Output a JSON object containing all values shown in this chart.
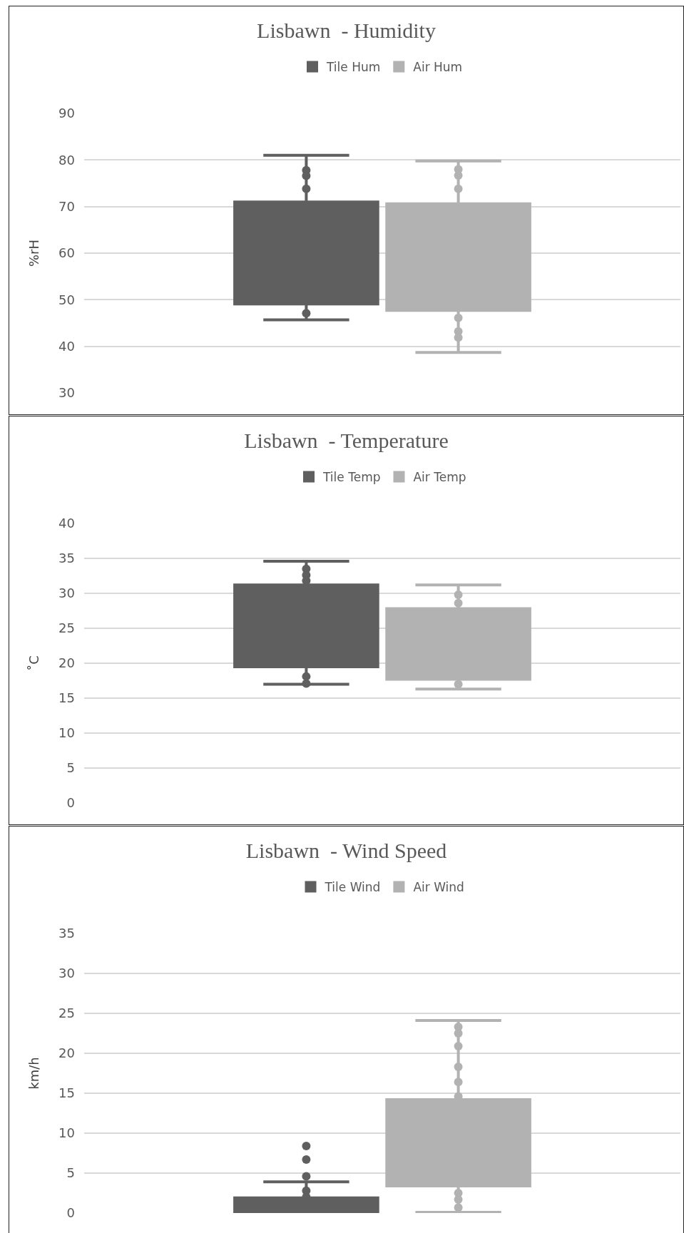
{
  "chart_data": [
    {
      "type": "box",
      "title": "Lisbawn  - Humidity",
      "ylabel": "%rH",
      "categories": [
        null
      ],
      "ylim": [
        30,
        90
      ],
      "yticks": [
        30,
        40,
        50,
        60,
        70,
        80,
        90
      ],
      "grid": "y",
      "legend": "top",
      "marker": "circle",
      "series": [
        {
          "name": "Tile Hum",
          "color": "#5f5f5f",
          "boxes": [
            {
              "low": 45.7,
              "q1": 49.1,
              "median": 60,
              "q3": 71,
              "high": 81,
              "outliers": [
                77.8,
                76.6,
                73.8,
                47.1
              ]
            }
          ]
        },
        {
          "name": "Air Hum",
          "color": "#b2b2b2",
          "boxes": [
            {
              "low": 38.7,
              "q1": 47.7,
              "median": 59,
              "q3": 70.6,
              "high": 79.8,
              "outliers": [
                78,
                76.7,
                73.8,
                46.1,
                43.2,
                41.9
              ]
            }
          ]
        }
      ]
    },
    {
      "type": "box",
      "title": "Lisbawn  - Temperature",
      "ylabel": "˚C",
      "categories": [
        null
      ],
      "ylim": [
        0,
        40
      ],
      "yticks": [
        0,
        5,
        10,
        15,
        20,
        25,
        30,
        35,
        40
      ],
      "grid": "y",
      "legend": "top",
      "marker": "circle",
      "series": [
        {
          "name": "Tile Temp",
          "color": "#5f5f5f",
          "boxes": [
            {
              "low": 17,
              "q1": 19.5,
              "median": 25,
              "q3": 31.2,
              "high": 34.6,
              "outliers": [
                33.5,
                32.6,
                31.8,
                18.1,
                17.1
              ]
            }
          ]
        },
        {
          "name": "Air Temp",
          "color": "#b2b2b2",
          "boxes": [
            {
              "low": 16.3,
              "q1": 17.7,
              "median": 22,
              "q3": 27.8,
              "high": 31.2,
              "outliers": [
                29.8,
                28.6,
                17
              ]
            }
          ]
        }
      ]
    },
    {
      "type": "box",
      "title": "Lisbawn  - Wind Speed",
      "ylabel": "km/h",
      "categories": [
        null
      ],
      "ylim": [
        0,
        35
      ],
      "yticks": [
        0,
        5,
        10,
        15,
        20,
        25,
        30,
        35
      ],
      "grid": "y",
      "legend": "top",
      "marker": "circle",
      "series": [
        {
          "name": "Tile Wind",
          "color": "#5f5f5f",
          "boxes": [
            {
              "low": 0,
              "q1": 0,
              "median": 0.8,
              "q3": 1.9,
              "high": 3.9,
              "outliers": [
                8.4,
                6.7,
                4.6,
                2.8,
                2
              ]
            }
          ]
        },
        {
          "name": "Air Wind",
          "color": "#b2b2b2",
          "boxes": [
            {
              "low": 0.1,
              "q1": 3.4,
              "median": 8,
              "q3": 14.2,
              "high": 24.1,
              "outliers": [
                23.3,
                22.5,
                20.9,
                18.3,
                16.4,
                14.6,
                2.5,
                1.7,
                0.7
              ]
            }
          ]
        }
      ]
    }
  ]
}
